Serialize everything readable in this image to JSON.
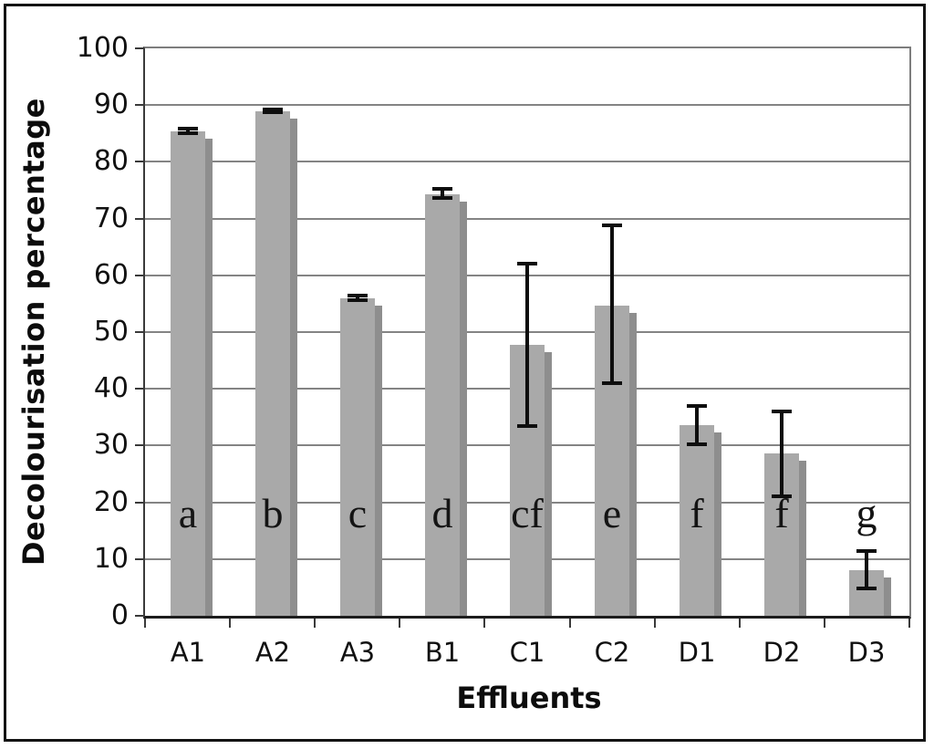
{
  "chart_data": {
    "type": "bar",
    "xlabel": "Effluents",
    "ylabel": "Decolourisation percentage",
    "categories": [
      "A1",
      "A2",
      "A3",
      "B1",
      "C1",
      "C2",
      "D1",
      "D2",
      "D3"
    ],
    "values": [
      85.4,
      88.9,
      55.9,
      74.2,
      47.8,
      54.7,
      33.6,
      28.6,
      8.1
    ],
    "error_low": [
      85.0,
      88.7,
      55.7,
      73.6,
      33.5,
      41.0,
      30.2,
      21.0,
      4.8
    ],
    "error_high": [
      85.8,
      89.3,
      56.5,
      75.3,
      62.0,
      68.8,
      37.0,
      36.0,
      11.4
    ],
    "significance_letters": [
      "a",
      "b",
      "c",
      "d",
      "cf",
      "e",
      "f",
      "f",
      "g"
    ],
    "letter_y_value": 18,
    "ylim": [
      0,
      100
    ],
    "ytick_step": 10,
    "yticks": [
      0,
      10,
      20,
      30,
      40,
      50,
      60,
      70,
      80,
      90,
      100
    ],
    "grid": true,
    "legend": false,
    "colors": {
      "bar_fill": "#a9a9a9",
      "bar_shadow": "#8e8e8e",
      "error_bar": "#0e0e0e",
      "gridline": "#6f6f6f",
      "axis_line": "#3a3a3a",
      "plot_border": "#7d7d7d",
      "frame": "#141414",
      "background": "#ffffff",
      "text": "#111111"
    }
  }
}
